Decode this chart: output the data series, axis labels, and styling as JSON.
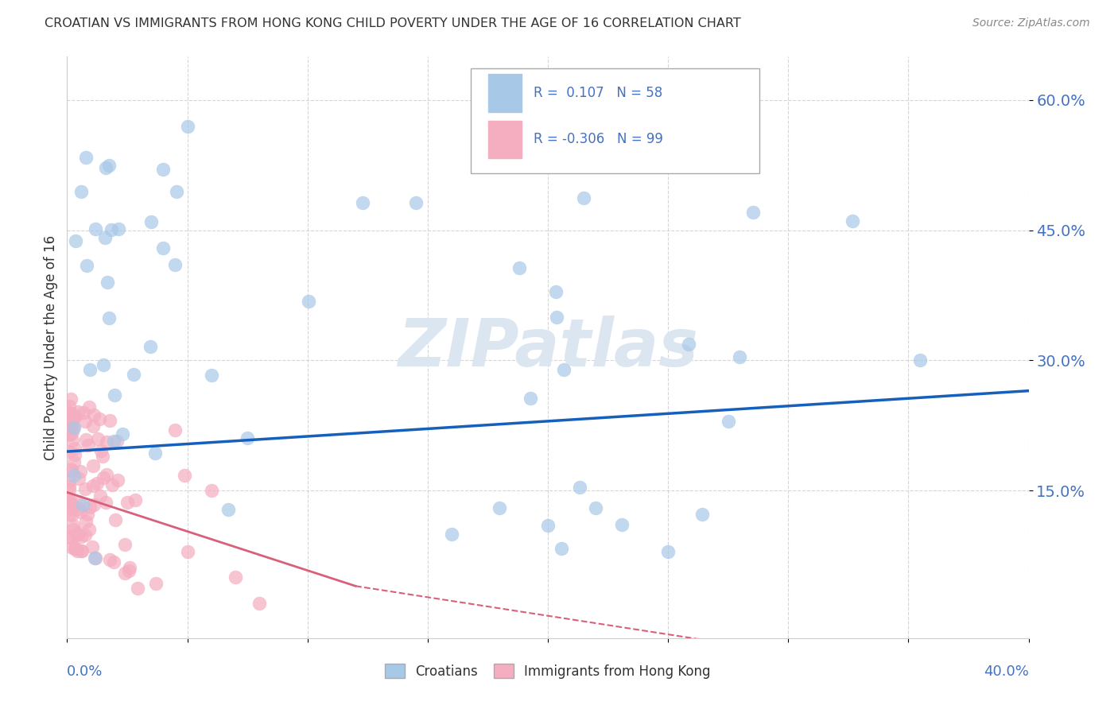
{
  "title": "CROATIAN VS IMMIGRANTS FROM HONG KONG CHILD POVERTY UNDER THE AGE OF 16 CORRELATION CHART",
  "source": "Source: ZipAtlas.com",
  "ylabel": "Child Poverty Under the Age of 16",
  "xlim": [
    0.0,
    0.4
  ],
  "ylim": [
    -0.02,
    0.65
  ],
  "ytick_vals": [
    0.15,
    0.3,
    0.45,
    0.6
  ],
  "ytick_labels": [
    "15.0%",
    "30.0%",
    "45.0%",
    "60.0%"
  ],
  "xtick_vals": [
    0.0,
    0.05,
    0.1,
    0.15,
    0.2,
    0.25,
    0.3,
    0.35,
    0.4
  ],
  "R_croatian": 0.107,
  "N_croatian": 58,
  "R_hk": -0.306,
  "N_hk": 99,
  "blue_color": "#a8c8e8",
  "pink_color": "#f5adc0",
  "blue_line_color": "#1560bd",
  "pink_line_color": "#d9607a",
  "watermark": "ZIPatlas",
  "watermark_color": "#dce6f0",
  "background_color": "#ffffff",
  "grid_color": "#cccccc",
  "legend_box_blue": "#a8c8e8",
  "legend_box_pink": "#f5adc0",
  "tick_label_color": "#4472c4",
  "title_color": "#333333",
  "source_color": "#888888"
}
